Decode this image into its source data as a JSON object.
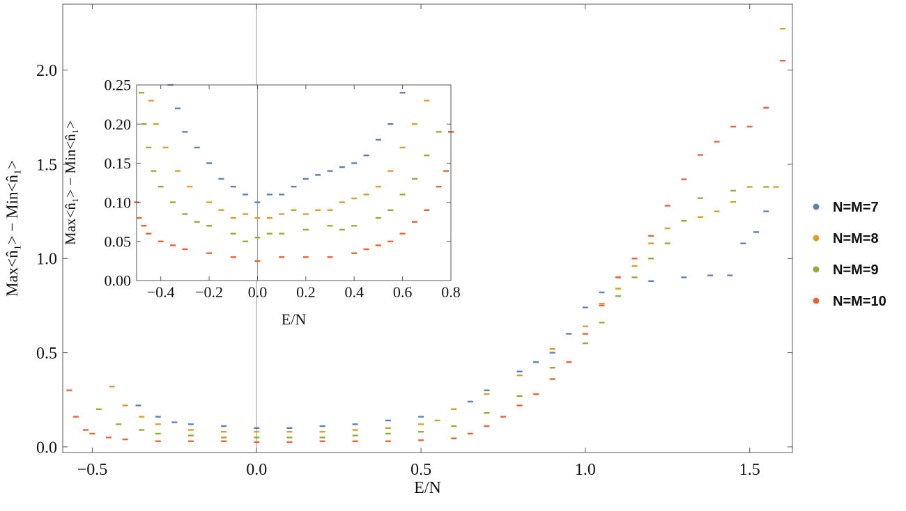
{
  "chart_data": [
    {
      "type": "scatter",
      "title": "",
      "xlabel": "E/N",
      "ylabel": "Max<n̂₁> − Min<n̂₁>",
      "xlim": [
        -0.59,
        1.63
      ],
      "ylim": [
        -0.03,
        2.35
      ],
      "xticks": [
        -0.5,
        0.0,
        0.5,
        1.0,
        1.5
      ],
      "xtick_labels": [
        "−0.5",
        "0.0",
        "0.5",
        "1.0",
        "1.5"
      ],
      "yticks": [
        0.0,
        0.5,
        1.0,
        1.5,
        2.0
      ],
      "ytick_labels": [
        "0.0",
        "0.5",
        "1.0",
        "1.5",
        "2.0"
      ],
      "grid": false,
      "legend_position": "right",
      "series": [
        {
          "name": "N=M=7",
          "color": "#5E81B5",
          "points": [
            [
              -0.36,
              0.22
            ],
            [
              -0.3,
              0.16
            ],
            [
              -0.25,
              0.13
            ],
            [
              -0.2,
              0.12
            ],
            [
              -0.1,
              0.11
            ],
            [
              0.0,
              0.1
            ],
            [
              0.1,
              0.1
            ],
            [
              0.2,
              0.11
            ],
            [
              0.3,
              0.12
            ],
            [
              0.4,
              0.14
            ],
            [
              0.5,
              0.16
            ],
            [
              0.6,
              0.2
            ],
            [
              0.65,
              0.24
            ],
            [
              0.7,
              0.3
            ],
            [
              0.8,
              0.4
            ],
            [
              0.85,
              0.45
            ],
            [
              0.9,
              0.5
            ],
            [
              0.95,
              0.6
            ],
            [
              1.0,
              0.74
            ],
            [
              1.05,
              0.82
            ],
            [
              1.1,
              0.9
            ],
            [
              1.2,
              0.88
            ],
            [
              1.3,
              0.9
            ],
            [
              1.38,
              0.91
            ],
            [
              1.44,
              0.91
            ],
            [
              1.48,
              1.08
            ],
            [
              1.52,
              1.14
            ],
            [
              1.55,
              1.25
            ]
          ]
        },
        {
          "name": "N=M=8",
          "color": "#E19C24",
          "points": [
            [
              -0.44,
              0.32
            ],
            [
              -0.4,
              0.22
            ],
            [
              -0.35,
              0.16
            ],
            [
              -0.3,
              0.12
            ],
            [
              -0.2,
              0.09
            ],
            [
              -0.1,
              0.08
            ],
            [
              0.0,
              0.08
            ],
            [
              0.1,
              0.08
            ],
            [
              0.2,
              0.08
            ],
            [
              0.3,
              0.09
            ],
            [
              0.4,
              0.1
            ],
            [
              0.5,
              0.12
            ],
            [
              0.55,
              0.14
            ],
            [
              0.6,
              0.2
            ],
            [
              0.7,
              0.28
            ],
            [
              0.8,
              0.38
            ],
            [
              0.9,
              0.52
            ],
            [
              1.0,
              0.64
            ],
            [
              1.05,
              0.76
            ],
            [
              1.1,
              0.84
            ],
            [
              1.15,
              0.96
            ],
            [
              1.2,
              1.08
            ],
            [
              1.25,
              1.16
            ],
            [
              1.35,
              1.22
            ],
            [
              1.4,
              1.25
            ],
            [
              1.45,
              1.3
            ],
            [
              1.5,
              1.38
            ],
            [
              1.58,
              1.38
            ],
            [
              1.6,
              2.22
            ]
          ]
        },
        {
          "name": "N=M=9",
          "color": "#8FB032",
          "points": [
            [
              -0.48,
              0.2
            ],
            [
              -0.42,
              0.12
            ],
            [
              -0.35,
              0.09
            ],
            [
              -0.3,
              0.07
            ],
            [
              -0.2,
              0.06
            ],
            [
              -0.1,
              0.05
            ],
            [
              0.0,
              0.05
            ],
            [
              0.1,
              0.05
            ],
            [
              0.2,
              0.05
            ],
            [
              0.3,
              0.06
            ],
            [
              0.4,
              0.07
            ],
            [
              0.5,
              0.08
            ],
            [
              0.6,
              0.11
            ],
            [
              0.7,
              0.18
            ],
            [
              0.8,
              0.27
            ],
            [
              0.9,
              0.42
            ],
            [
              1.0,
              0.55
            ],
            [
              1.05,
              0.66
            ],
            [
              1.1,
              0.8
            ],
            [
              1.15,
              0.9
            ],
            [
              1.2,
              1.0
            ],
            [
              1.25,
              1.08
            ],
            [
              1.3,
              1.2
            ],
            [
              1.35,
              1.32
            ],
            [
              1.45,
              1.36
            ],
            [
              1.55,
              1.38
            ]
          ]
        },
        {
          "name": "N=M=10",
          "color": "#EB6235",
          "points": [
            [
              -0.57,
              0.3
            ],
            [
              -0.55,
              0.16
            ],
            [
              -0.52,
              0.09
            ],
            [
              -0.5,
              0.07
            ],
            [
              -0.45,
              0.05
            ],
            [
              -0.4,
              0.04
            ],
            [
              -0.3,
              0.03
            ],
            [
              -0.2,
              0.03
            ],
            [
              -0.1,
              0.03
            ],
            [
              0.0,
              0.025
            ],
            [
              0.1,
              0.025
            ],
            [
              0.2,
              0.03
            ],
            [
              0.3,
              0.03
            ],
            [
              0.4,
              0.03
            ],
            [
              0.5,
              0.035
            ],
            [
              0.6,
              0.045
            ],
            [
              0.65,
              0.07
            ],
            [
              0.7,
              0.11
            ],
            [
              0.75,
              0.16
            ],
            [
              0.8,
              0.22
            ],
            [
              0.85,
              0.28
            ],
            [
              0.9,
              0.36
            ],
            [
              0.95,
              0.45
            ],
            [
              1.0,
              0.6
            ],
            [
              1.05,
              0.75
            ],
            [
              1.1,
              0.9
            ],
            [
              1.15,
              1.0
            ],
            [
              1.2,
              1.12
            ],
            [
              1.25,
              1.28
            ],
            [
              1.3,
              1.42
            ],
            [
              1.35,
              1.55
            ],
            [
              1.4,
              1.62
            ],
            [
              1.45,
              1.7
            ],
            [
              1.5,
              1.7
            ],
            [
              1.55,
              1.8
            ],
            [
              1.6,
              2.05
            ]
          ]
        }
      ]
    },
    {
      "type": "scatter",
      "title": "",
      "xlabel": "E/N",
      "ylabel": "Max<n̂₁> − Min<n̂₁>",
      "xlim": [
        -0.5,
        0.8
      ],
      "ylim": [
        0.0,
        0.25
      ],
      "xticks": [
        -0.4,
        -0.2,
        0.0,
        0.2,
        0.4,
        0.6,
        0.8
      ],
      "xtick_labels": [
        "−0.4",
        "−0.2",
        "0.0",
        "0.2",
        "0.4",
        "0.6",
        "0.8"
      ],
      "yticks": [
        0.0,
        0.05,
        0.1,
        0.15,
        0.2,
        0.25
      ],
      "ytick_labels": [
        "0.00",
        "0.05",
        "0.10",
        "0.15",
        "0.20",
        "0.25"
      ],
      "grid": false,
      "legend_position": "none",
      "series": [
        {
          "name": "N=M=7",
          "color": "#5E81B5",
          "points": [
            [
              -0.36,
              0.25
            ],
            [
              -0.33,
              0.22
            ],
            [
              -0.3,
              0.19
            ],
            [
              -0.25,
              0.17
            ],
            [
              -0.2,
              0.15
            ],
            [
              -0.15,
              0.13
            ],
            [
              -0.1,
              0.12
            ],
            [
              -0.05,
              0.11
            ],
            [
              0.0,
              0.1
            ],
            [
              0.05,
              0.11
            ],
            [
              0.1,
              0.11
            ],
            [
              0.15,
              0.12
            ],
            [
              0.2,
              0.13
            ],
            [
              0.25,
              0.135
            ],
            [
              0.3,
              0.14
            ],
            [
              0.35,
              0.145
            ],
            [
              0.4,
              0.15
            ],
            [
              0.45,
              0.16
            ],
            [
              0.5,
              0.18
            ],
            [
              0.55,
              0.2
            ],
            [
              0.6,
              0.24
            ]
          ]
        },
        {
          "name": "N=M=8",
          "color": "#E19C24",
          "points": [
            [
              -0.44,
              0.23
            ],
            [
              -0.42,
              0.2
            ],
            [
              -0.38,
              0.17
            ],
            [
              -0.33,
              0.14
            ],
            [
              -0.28,
              0.12
            ],
            [
              -0.2,
              0.1
            ],
            [
              -0.15,
              0.09
            ],
            [
              -0.1,
              0.08
            ],
            [
              -0.05,
              0.085
            ],
            [
              0.0,
              0.08
            ],
            [
              0.05,
              0.08
            ],
            [
              0.1,
              0.085
            ],
            [
              0.15,
              0.09
            ],
            [
              0.2,
              0.085
            ],
            [
              0.25,
              0.09
            ],
            [
              0.3,
              0.09
            ],
            [
              0.35,
              0.1
            ],
            [
              0.4,
              0.105
            ],
            [
              0.45,
              0.11
            ],
            [
              0.5,
              0.12
            ],
            [
              0.55,
              0.14
            ],
            [
              0.6,
              0.17
            ],
            [
              0.65,
              0.2
            ],
            [
              0.7,
              0.23
            ]
          ]
        },
        {
          "name": "N=M=9",
          "color": "#8FB032",
          "points": [
            [
              -0.48,
              0.24
            ],
            [
              -0.47,
              0.2
            ],
            [
              -0.45,
              0.17
            ],
            [
              -0.43,
              0.14
            ],
            [
              -0.4,
              0.12
            ],
            [
              -0.35,
              0.1
            ],
            [
              -0.3,
              0.085
            ],
            [
              -0.25,
              0.075
            ],
            [
              -0.2,
              0.07
            ],
            [
              -0.1,
              0.06
            ],
            [
              -0.05,
              0.05
            ],
            [
              0.0,
              0.055
            ],
            [
              0.05,
              0.06
            ],
            [
              0.1,
              0.06
            ],
            [
              0.2,
              0.065
            ],
            [
              0.3,
              0.07
            ],
            [
              0.35,
              0.065
            ],
            [
              0.4,
              0.07
            ],
            [
              0.5,
              0.08
            ],
            [
              0.55,
              0.09
            ],
            [
              0.6,
              0.11
            ],
            [
              0.65,
              0.13
            ],
            [
              0.7,
              0.16
            ],
            [
              0.75,
              0.19
            ],
            [
              0.8,
              0.19
            ]
          ]
        },
        {
          "name": "N=M=10",
          "color": "#EB6235",
          "points": [
            [
              -0.5,
              0.1
            ],
            [
              -0.49,
              0.08
            ],
            [
              -0.47,
              0.07
            ],
            [
              -0.45,
              0.06
            ],
            [
              -0.4,
              0.05
            ],
            [
              -0.35,
              0.045
            ],
            [
              -0.3,
              0.04
            ],
            [
              -0.2,
              0.035
            ],
            [
              -0.1,
              0.03
            ],
            [
              0.0,
              0.025
            ],
            [
              0.1,
              0.03
            ],
            [
              0.2,
              0.03
            ],
            [
              0.3,
              0.03
            ],
            [
              0.4,
              0.035
            ],
            [
              0.45,
              0.04
            ],
            [
              0.5,
              0.045
            ],
            [
              0.55,
              0.05
            ],
            [
              0.6,
              0.06
            ],
            [
              0.65,
              0.075
            ],
            [
              0.7,
              0.09
            ],
            [
              0.75,
              0.12
            ],
            [
              0.78,
              0.14
            ],
            [
              0.8,
              0.19
            ]
          ]
        }
      ]
    }
  ]
}
